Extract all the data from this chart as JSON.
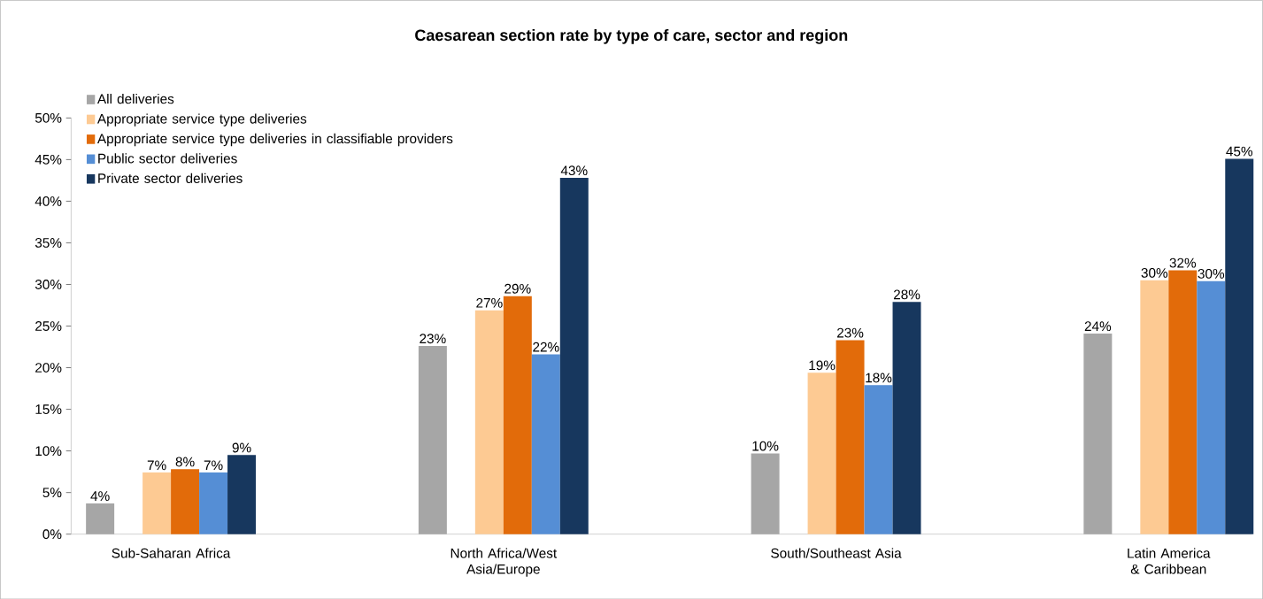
{
  "chart_data": {
    "type": "bar",
    "title": "Caesarean section rate by  type of care, sector and region",
    "categories": [
      "Sub-Saharan Africa",
      "North Africa/West Asia/Europe",
      "South/Southeast Asia",
      "Latin America & Caribbean"
    ],
    "series": [
      {
        "name": "All deliveries",
        "color": "#a6a6a6",
        "values": [
          3.7,
          22.6,
          9.7,
          24.1
        ],
        "value_labels": [
          "4%",
          "23%",
          "10%",
          "24%"
        ]
      },
      {
        "name": "Appropriate service type deliveries",
        "color": "#fdca93",
        "values": [
          7.4,
          26.9,
          19.4,
          30.5
        ],
        "value_labels": [
          "7%",
          "27%",
          "19%",
          "30%"
        ]
      },
      {
        "name": "Appropriate service type deliveries in classifiable providers",
        "color": "#e26b0a",
        "values": [
          7.8,
          28.6,
          23.3,
          31.7
        ],
        "value_labels": [
          "8%",
          "29%",
          "23%",
          "32%"
        ]
      },
      {
        "name": "Public sector deliveries",
        "color": "#558ed5",
        "values": [
          7.4,
          21.6,
          17.9,
          30.4
        ],
        "value_labels": [
          "7%",
          "22%",
          "18%",
          "30%"
        ]
      },
      {
        "name": "Private sector deliveries",
        "color": "#17375e",
        "values": [
          9.5,
          42.8,
          27.9,
          45.1
        ],
        "value_labels": [
          "9%",
          "43%",
          "28%",
          "45%"
        ]
      }
    ],
    "ylim": [
      0,
      50
    ],
    "yticks": [
      {
        "value": 0,
        "label": "0%"
      },
      {
        "value": 5,
        "label": "5%"
      },
      {
        "value": 10,
        "label": "10%"
      },
      {
        "value": 15,
        "label": "15%"
      },
      {
        "value": 20,
        "label": "20%"
      },
      {
        "value": 25,
        "label": "25%"
      },
      {
        "value": 30,
        "label": "30%"
      },
      {
        "value": 35,
        "label": "35%"
      },
      {
        "value": 40,
        "label": "40%"
      },
      {
        "value": 45,
        "label": "45%"
      },
      {
        "value": 50,
        "label": "50%"
      }
    ],
    "grid": false,
    "legend": "top left"
  }
}
